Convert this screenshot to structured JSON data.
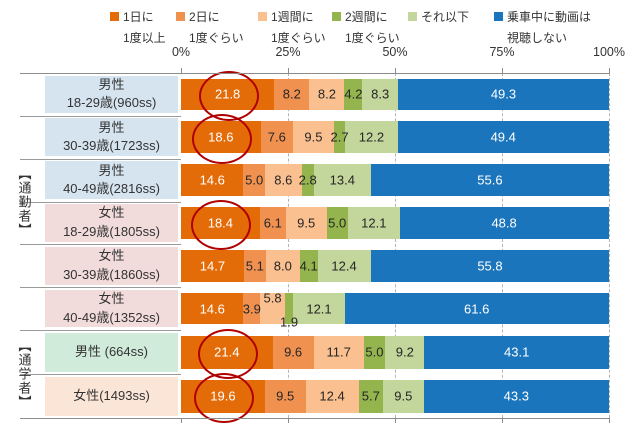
{
  "legend": {
    "items": [
      {
        "line1": "1日に",
        "line2": "1度以上",
        "color": "#E36C09"
      },
      {
        "line1": "2日に",
        "line2": "1度ぐらい",
        "color": "#F09150"
      },
      {
        "line1": "1週間に",
        "line2": "1度ぐらい",
        "color": "#FAC090"
      },
      {
        "line1": "2週間に",
        "line2": "1度ぐらい",
        "color": "#94B44D"
      },
      {
        "line1": "それ以下",
        "line2": "",
        "color": "#C3D69B"
      },
      {
        "line1": "乗車中に動画は",
        "line2": "視聴しない",
        "color": "#1B75BC"
      }
    ]
  },
  "chart_data": {
    "type": "bar",
    "orientation": "horizontal",
    "stacked": true,
    "xlim": [
      0,
      100
    ],
    "grid": "dashed-vertical-25-50-75-100",
    "legend_position": "top",
    "x_ticks": [
      "0%",
      "25%",
      "50%",
      "75%",
      "100%"
    ],
    "series_names": [
      "1日に1度以上",
      "2日に1度ぐらい",
      "1週間に1度ぐらい",
      "2週間に1度ぐらい",
      "それ以下",
      "乗車中に動画は視聴しない"
    ],
    "series_colors": [
      "#E36C09",
      "#F09150",
      "#FAC090",
      "#94B44D",
      "#C3D69B",
      "#1B75BC"
    ],
    "value_text_colors": [
      "#ffffff",
      "#262626",
      "#262626",
      "#262626",
      "#262626",
      "#ffffff"
    ],
    "groups": [
      {
        "label": "【通勤者】",
        "row_indexes": [
          0,
          1,
          2,
          3,
          4,
          5
        ]
      },
      {
        "label": "【通学者】",
        "row_indexes": [
          6,
          7
        ]
      }
    ],
    "rows": [
      {
        "label_line1": "男性",
        "label_line2": "18-29歳(960ss)",
        "label_bg": "#D6E4F0",
        "values": [
          21.8,
          8.2,
          8.2,
          4.2,
          8.3,
          49.3
        ],
        "circled": true
      },
      {
        "label_line1": "男性",
        "label_line2": "30-39歳(1723ss)",
        "label_bg": "#D6E4F0",
        "values": [
          18.6,
          7.6,
          9.5,
          2.7,
          12.2,
          49.4
        ],
        "circled": true
      },
      {
        "label_line1": "男性",
        "label_line2": "40-49歳(2816ss)",
        "label_bg": "#D6E4F0",
        "values": [
          14.6,
          5.0,
          8.6,
          2.8,
          13.4,
          55.6
        ],
        "circled": false
      },
      {
        "label_line1": "女性",
        "label_line2": "18-29歳(1805ss)",
        "label_bg": "#F2DBDB",
        "values": [
          18.4,
          6.1,
          9.5,
          5.0,
          12.1,
          48.8
        ],
        "circled": true
      },
      {
        "label_line1": "女性",
        "label_line2": "30-39歳(1860ss)",
        "label_bg": "#F2DBDB",
        "values": [
          14.7,
          5.1,
          8.0,
          4.1,
          12.4,
          55.8
        ],
        "circled": false
      },
      {
        "label_line1": "女性",
        "label_line2": "40-49歳(1352ss)",
        "label_bg": "#F2DBDB",
        "values": [
          14.6,
          3.9,
          5.8,
          1.9,
          12.1,
          61.6
        ],
        "circled": false,
        "label_shift": {
          "2": "up",
          "3": "down"
        }
      },
      {
        "label_line1": "男性 (664ss)",
        "label_line2": "",
        "label_bg": "#D0EBDA",
        "values": [
          21.4,
          9.6,
          11.7,
          5.0,
          9.2,
          43.1
        ],
        "circled": true
      },
      {
        "label_line1": "女性(1493ss)",
        "label_line2": "",
        "label_bg": "#FBE5D6",
        "values": [
          19.6,
          9.5,
          12.4,
          5.7,
          9.5,
          43.3
        ],
        "circled": true
      }
    ],
    "annotations": {
      "highlight_circle_color": "#B00000",
      "highlighted_values": [
        21.8,
        18.6,
        18.4,
        21.4,
        19.6
      ]
    }
  }
}
